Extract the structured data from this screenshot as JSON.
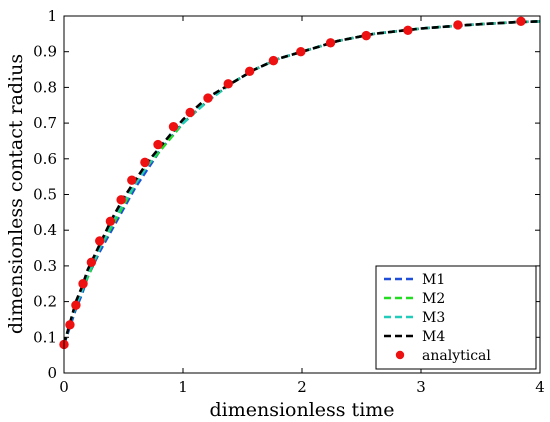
{
  "chart_data": {
    "type": "line",
    "xlabel": "dimensionless time",
    "ylabel": "dimensionless contact radius",
    "xlim": [
      0,
      4
    ],
    "ylim": [
      0,
      1
    ],
    "x_ticks": [
      0,
      1,
      2,
      3,
      4
    ],
    "y_ticks": [
      0,
      0.1,
      0.2,
      0.3,
      0.4,
      0.5,
      0.6,
      0.7,
      0.8,
      0.9,
      1
    ],
    "x_tick_labels": [
      "0",
      "1",
      "2",
      "3",
      "4"
    ],
    "y_tick_labels": [
      "0",
      "0.1",
      "0.2",
      "0.3",
      "0.4",
      "0.5",
      "0.6",
      "0.7",
      "0.8",
      "0.9",
      "1"
    ],
    "grid": false,
    "legend_position": "bottom-right",
    "series": [
      {
        "name": "M1",
        "style": "dashed",
        "color": "#1f4fd8",
        "x": [
          0,
          0.05,
          0.1,
          0.15,
          0.2,
          0.3,
          0.4,
          0.5,
          0.6,
          0.7,
          0.8,
          0.9,
          1.0,
          1.2,
          1.4,
          1.6,
          1.8,
          2.0,
          2.3,
          2.6,
          3.0,
          3.4,
          3.8,
          4.0
        ],
        "y": [
          0.08,
          0.13,
          0.18,
          0.22,
          0.27,
          0.34,
          0.4,
          0.46,
          0.52,
          0.57,
          0.62,
          0.66,
          0.7,
          0.76,
          0.81,
          0.85,
          0.88,
          0.9,
          0.93,
          0.95,
          0.965,
          0.975,
          0.983,
          0.985
        ]
      },
      {
        "name": "M2",
        "style": "dashed",
        "color": "#22dd22",
        "x": [
          0,
          0.05,
          0.1,
          0.15,
          0.2,
          0.3,
          0.4,
          0.5,
          0.6,
          0.7,
          0.8,
          0.9,
          1.0,
          1.2,
          1.4,
          1.6,
          1.8,
          2.0,
          2.3,
          2.6,
          3.0,
          3.4,
          3.8,
          4.0
        ],
        "y": [
          0.08,
          0.14,
          0.19,
          0.23,
          0.27,
          0.35,
          0.41,
          0.47,
          0.53,
          0.58,
          0.62,
          0.66,
          0.7,
          0.76,
          0.81,
          0.85,
          0.88,
          0.9,
          0.93,
          0.95,
          0.965,
          0.975,
          0.983,
          0.985
        ]
      },
      {
        "name": "M3",
        "style": "dashed",
        "color": "#22ccbb",
        "x": [
          0,
          0.05,
          0.1,
          0.15,
          0.2,
          0.3,
          0.4,
          0.5,
          0.6,
          0.7,
          0.8,
          0.9,
          1.0,
          1.2,
          1.4,
          1.6,
          1.8,
          2.0,
          2.3,
          2.6,
          3.0,
          3.4,
          3.8,
          4.0
        ],
        "y": [
          0.08,
          0.14,
          0.19,
          0.23,
          0.28,
          0.35,
          0.42,
          0.48,
          0.53,
          0.58,
          0.63,
          0.67,
          0.7,
          0.76,
          0.81,
          0.85,
          0.88,
          0.9,
          0.93,
          0.95,
          0.965,
          0.975,
          0.983,
          0.985
        ]
      },
      {
        "name": "M4",
        "style": "dashed",
        "color": "#000000",
        "x": [
          0,
          0.05,
          0.1,
          0.15,
          0.2,
          0.3,
          0.4,
          0.5,
          0.6,
          0.7,
          0.8,
          0.9,
          1.0,
          1.2,
          1.4,
          1.6,
          1.8,
          2.0,
          2.3,
          2.6,
          3.0,
          3.4,
          3.8,
          4.0
        ],
        "y": [
          0.08,
          0.14,
          0.2,
          0.24,
          0.29,
          0.36,
          0.43,
          0.49,
          0.54,
          0.59,
          0.63,
          0.67,
          0.71,
          0.77,
          0.81,
          0.85,
          0.88,
          0.9,
          0.93,
          0.95,
          0.965,
          0.975,
          0.983,
          0.985
        ]
      },
      {
        "name": "analytical",
        "style": "markers",
        "color": "#ee1111",
        "x": [
          0.0,
          0.05,
          0.1,
          0.16,
          0.23,
          0.3,
          0.39,
          0.48,
          0.57,
          0.68,
          0.79,
          0.92,
          1.06,
          1.21,
          1.38,
          1.56,
          1.76,
          1.99,
          2.24,
          2.54,
          2.89,
          3.31,
          3.84
        ],
        "y": [
          0.08,
          0.135,
          0.19,
          0.25,
          0.31,
          0.37,
          0.425,
          0.485,
          0.54,
          0.59,
          0.64,
          0.69,
          0.73,
          0.77,
          0.81,
          0.845,
          0.875,
          0.9,
          0.925,
          0.945,
          0.96,
          0.975,
          0.985
        ]
      }
    ]
  }
}
